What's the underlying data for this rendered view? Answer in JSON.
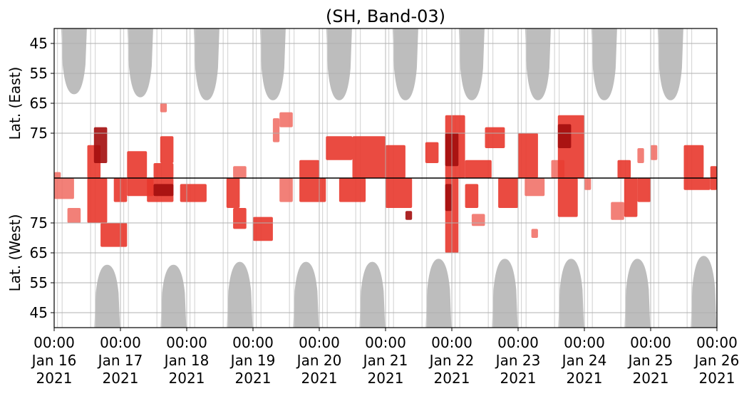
{
  "chart_data": {
    "type": "heatmap",
    "title": "(SH, Band-03)",
    "grid": true,
    "x_axis": {
      "range": [
        "2021-01-16 00:00",
        "2021-01-26 00:00"
      ],
      "ticks": [
        {
          "time": "00:00",
          "date": "Jan 16",
          "year": "2021"
        },
        {
          "time": "00:00",
          "date": "Jan 17",
          "year": "2021"
        },
        {
          "time": "00:00",
          "date": "Jan 18",
          "year": "2021"
        },
        {
          "time": "00:00",
          "date": "Jan 19",
          "year": "2021"
        },
        {
          "time": "00:00",
          "date": "Jan 20",
          "year": "2021"
        },
        {
          "time": "00:00",
          "date": "Jan 21",
          "year": "2021"
        },
        {
          "time": "00:00",
          "date": "Jan 22",
          "year": "2021"
        },
        {
          "time": "00:00",
          "date": "Jan 23",
          "year": "2021"
        },
        {
          "time": "00:00",
          "date": "Jan 24",
          "year": "2021"
        },
        {
          "time": "00:00",
          "date": "Jan 25",
          "year": "2021"
        },
        {
          "time": "00:00",
          "date": "Jan 26",
          "year": "2021"
        }
      ]
    },
    "y_axis_east": {
      "label": "Lat. (East)",
      "ticks": [
        "45",
        "55",
        "65",
        "75"
      ],
      "range": [
        40,
        90
      ]
    },
    "y_axis_west": {
      "label": "Lat. (West)",
      "ticks": [
        "75",
        "65",
        "55",
        "45"
      ],
      "range": [
        90,
        40
      ]
    },
    "colors": {
      "activity_light": "#f06a60",
      "activity_mid": "#e8372c",
      "activity_dark": "#a30d0d",
      "daylight": "#bdbdbd",
      "grid": "#b0b0b0",
      "divider": "#000000"
    },
    "daylight_east": [
      {
        "center_day": 0.3,
        "bottom_lat": 62
      },
      {
        "center_day": 1.3,
        "bottom_lat": 63
      },
      {
        "center_day": 2.3,
        "bottom_lat": 64
      },
      {
        "center_day": 3.3,
        "bottom_lat": 64
      },
      {
        "center_day": 4.3,
        "bottom_lat": 64
      },
      {
        "center_day": 5.3,
        "bottom_lat": 64
      },
      {
        "center_day": 6.3,
        "bottom_lat": 64
      },
      {
        "center_day": 7.3,
        "bottom_lat": 64
      },
      {
        "center_day": 8.3,
        "bottom_lat": 64
      },
      {
        "center_day": 9.3,
        "bottom_lat": 64
      }
    ],
    "daylight_west": [
      {
        "center_day": 0.8,
        "top_lat": 61
      },
      {
        "center_day": 1.8,
        "top_lat": 61
      },
      {
        "center_day": 2.8,
        "top_lat": 62
      },
      {
        "center_day": 3.8,
        "top_lat": 62
      },
      {
        "center_day": 4.8,
        "top_lat": 62
      },
      {
        "center_day": 5.8,
        "top_lat": 63
      },
      {
        "center_day": 6.8,
        "top_lat": 63
      },
      {
        "center_day": 7.8,
        "top_lat": 63
      },
      {
        "center_day": 8.8,
        "top_lat": 63
      },
      {
        "center_day": 9.8,
        "top_lat": 64
      }
    ],
    "activity_clusters": [
      {
        "hemisphere": "east",
        "day_start": 0.0,
        "day_end": 0.1,
        "lat_from": 88,
        "lat_to": 90,
        "intensity": 1
      },
      {
        "hemisphere": "west",
        "day_start": 0.0,
        "day_end": 0.3,
        "lat_from": 83,
        "lat_to": 90,
        "intensity": 1
      },
      {
        "hemisphere": "west",
        "day_start": 0.2,
        "day_end": 0.4,
        "lat_from": 75,
        "lat_to": 80,
        "intensity": 1
      },
      {
        "hemisphere": "east",
        "day_start": 0.5,
        "day_end": 0.7,
        "lat_from": 79,
        "lat_to": 90,
        "intensity": 2
      },
      {
        "hemisphere": "east",
        "day_start": 0.6,
        "day_end": 0.8,
        "lat_from": 73,
        "lat_to": 85,
        "intensity": 3
      },
      {
        "hemisphere": "west",
        "day_start": 0.5,
        "day_end": 0.8,
        "lat_from": 75,
        "lat_to": 90,
        "intensity": 2
      },
      {
        "hemisphere": "west",
        "day_start": 0.7,
        "day_end": 1.1,
        "lat_from": 67,
        "lat_to": 75,
        "intensity": 2
      },
      {
        "hemisphere": "west",
        "day_start": 0.9,
        "day_end": 1.1,
        "lat_from": 82,
        "lat_to": 90,
        "intensity": 2
      },
      {
        "hemisphere": "east",
        "day_start": 1.1,
        "day_end": 1.4,
        "lat_from": 81,
        "lat_to": 90,
        "intensity": 2
      },
      {
        "hemisphere": "west",
        "day_start": 1.1,
        "day_end": 1.5,
        "lat_from": 84,
        "lat_to": 90,
        "intensity": 2
      },
      {
        "hemisphere": "east",
        "day_start": 1.5,
        "day_end": 1.8,
        "lat_from": 85,
        "lat_to": 90,
        "intensity": 2
      },
      {
        "hemisphere": "west",
        "day_start": 1.4,
        "day_end": 1.8,
        "lat_from": 82,
        "lat_to": 90,
        "intensity": 2
      },
      {
        "hemisphere": "west",
        "day_start": 1.5,
        "day_end": 1.8,
        "lat_from": 84,
        "lat_to": 88,
        "intensity": 3
      },
      {
        "hemisphere": "east",
        "day_start": 1.6,
        "day_end": 1.7,
        "lat_from": 65,
        "lat_to": 68,
        "intensity": 1
      },
      {
        "hemisphere": "east",
        "day_start": 1.6,
        "day_end": 1.8,
        "lat_from": 76,
        "lat_to": 85,
        "intensity": 2
      },
      {
        "hemisphere": "west",
        "day_start": 1.9,
        "day_end": 2.3,
        "lat_from": 82,
        "lat_to": 88,
        "intensity": 2
      },
      {
        "hemisphere": "east",
        "day_start": 2.7,
        "day_end": 2.9,
        "lat_from": 86,
        "lat_to": 90,
        "intensity": 1
      },
      {
        "hemisphere": "west",
        "day_start": 2.6,
        "day_end": 2.8,
        "lat_from": 80,
        "lat_to": 90,
        "intensity": 2
      },
      {
        "hemisphere": "west",
        "day_start": 2.7,
        "day_end": 2.9,
        "lat_from": 73,
        "lat_to": 80,
        "intensity": 2
      },
      {
        "hemisphere": "west",
        "day_start": 3.0,
        "day_end": 3.3,
        "lat_from": 69,
        "lat_to": 77,
        "intensity": 2
      },
      {
        "hemisphere": "east",
        "day_start": 3.3,
        "day_end": 3.4,
        "lat_from": 70,
        "lat_to": 78,
        "intensity": 1
      },
      {
        "hemisphere": "east",
        "day_start": 3.4,
        "day_end": 3.6,
        "lat_from": 68,
        "lat_to": 73,
        "intensity": 1
      },
      {
        "hemisphere": "west",
        "day_start": 3.4,
        "day_end": 3.6,
        "lat_from": 82,
        "lat_to": 90,
        "intensity": 1
      },
      {
        "hemisphere": "west",
        "day_start": 3.7,
        "day_end": 4.1,
        "lat_from": 82,
        "lat_to": 90,
        "intensity": 2
      },
      {
        "hemisphere": "east",
        "day_start": 3.7,
        "day_end": 4.0,
        "lat_from": 84,
        "lat_to": 90,
        "intensity": 2
      },
      {
        "hemisphere": "east",
        "day_start": 4.1,
        "day_end": 4.5,
        "lat_from": 76,
        "lat_to": 84,
        "intensity": 2
      },
      {
        "hemisphere": "west",
        "day_start": 4.3,
        "day_end": 4.7,
        "lat_from": 82,
        "lat_to": 90,
        "intensity": 2
      },
      {
        "hemisphere": "east",
        "day_start": 4.5,
        "day_end": 5.0,
        "lat_from": 76,
        "lat_to": 90,
        "intensity": 2
      },
      {
        "hemisphere": "east",
        "day_start": 5.0,
        "day_end": 5.3,
        "lat_from": 79,
        "lat_to": 90,
        "intensity": 2
      },
      {
        "hemisphere": "west",
        "day_start": 5.0,
        "day_end": 5.4,
        "lat_from": 80,
        "lat_to": 90,
        "intensity": 2
      },
      {
        "hemisphere": "west",
        "day_start": 5.3,
        "day_end": 5.4,
        "lat_from": 76,
        "lat_to": 79,
        "intensity": 3
      },
      {
        "hemisphere": "east",
        "day_start": 5.6,
        "day_end": 5.8,
        "lat_from": 78,
        "lat_to": 85,
        "intensity": 2
      },
      {
        "hemisphere": "east",
        "day_start": 5.9,
        "day_end": 6.2,
        "lat_from": 69,
        "lat_to": 90,
        "intensity": 2
      },
      {
        "hemisphere": "east",
        "day_start": 5.9,
        "day_end": 6.1,
        "lat_from": 75,
        "lat_to": 86,
        "intensity": 3
      },
      {
        "hemisphere": "west",
        "day_start": 5.9,
        "day_end": 6.1,
        "lat_from": 65,
        "lat_to": 90,
        "intensity": 2
      },
      {
        "hemisphere": "west",
        "day_start": 5.9,
        "day_end": 6.0,
        "lat_from": 79,
        "lat_to": 88,
        "intensity": 3
      },
      {
        "hemisphere": "east",
        "day_start": 6.2,
        "day_end": 6.6,
        "lat_from": 84,
        "lat_to": 90,
        "intensity": 2
      },
      {
        "hemisphere": "west",
        "day_start": 6.2,
        "day_end": 6.4,
        "lat_from": 80,
        "lat_to": 88,
        "intensity": 2
      },
      {
        "hemisphere": "west",
        "day_start": 6.3,
        "day_end": 6.5,
        "lat_from": 74,
        "lat_to": 78,
        "intensity": 1
      },
      {
        "hemisphere": "east",
        "day_start": 6.5,
        "day_end": 6.8,
        "lat_from": 73,
        "lat_to": 80,
        "intensity": 2
      },
      {
        "hemisphere": "west",
        "day_start": 6.7,
        "day_end": 7.0,
        "lat_from": 80,
        "lat_to": 90,
        "intensity": 2
      },
      {
        "hemisphere": "east",
        "day_start": 7.0,
        "day_end": 7.3,
        "lat_from": 75,
        "lat_to": 90,
        "intensity": 2
      },
      {
        "hemisphere": "west",
        "day_start": 7.1,
        "day_end": 7.4,
        "lat_from": 84,
        "lat_to": 90,
        "intensity": 1
      },
      {
        "hemisphere": "west",
        "day_start": 7.2,
        "day_end": 7.3,
        "lat_from": 70,
        "lat_to": 73,
        "intensity": 1
      },
      {
        "hemisphere": "east",
        "day_start": 7.5,
        "day_end": 7.7,
        "lat_from": 84,
        "lat_to": 90,
        "intensity": 1
      },
      {
        "hemisphere": "east",
        "day_start": 7.6,
        "day_end": 8.0,
        "lat_from": 69,
        "lat_to": 90,
        "intensity": 2
      },
      {
        "hemisphere": "east",
        "day_start": 7.6,
        "day_end": 7.8,
        "lat_from": 72,
        "lat_to": 80,
        "intensity": 3
      },
      {
        "hemisphere": "west",
        "day_start": 7.6,
        "day_end": 7.9,
        "lat_from": 77,
        "lat_to": 90,
        "intensity": 2
      },
      {
        "hemisphere": "west",
        "day_start": 8.0,
        "day_end": 8.1,
        "lat_from": 86,
        "lat_to": 90,
        "intensity": 1
      },
      {
        "hemisphere": "east",
        "day_start": 8.5,
        "day_end": 8.7,
        "lat_from": 84,
        "lat_to": 90,
        "intensity": 2
      },
      {
        "hemisphere": "west",
        "day_start": 8.4,
        "day_end": 8.6,
        "lat_from": 76,
        "lat_to": 82,
        "intensity": 1
      },
      {
        "hemisphere": "west",
        "day_start": 8.6,
        "day_end": 8.8,
        "lat_from": 77,
        "lat_to": 90,
        "intensity": 2
      },
      {
        "hemisphere": "east",
        "day_start": 8.8,
        "day_end": 8.9,
        "lat_from": 80,
        "lat_to": 85,
        "intensity": 1
      },
      {
        "hemisphere": "west",
        "day_start": 8.8,
        "day_end": 9.0,
        "lat_from": 82,
        "lat_to": 90,
        "intensity": 2
      },
      {
        "hemisphere": "east",
        "day_start": 9.0,
        "day_end": 9.1,
        "lat_from": 79,
        "lat_to": 84,
        "intensity": 1
      },
      {
        "hemisphere": "east",
        "day_start": 9.5,
        "day_end": 9.8,
        "lat_from": 79,
        "lat_to": 90,
        "intensity": 2
      },
      {
        "hemisphere": "west",
        "day_start": 9.5,
        "day_end": 9.9,
        "lat_from": 86,
        "lat_to": 90,
        "intensity": 2
      },
      {
        "hemisphere": "east",
        "day_start": 9.9,
        "day_end": 10.0,
        "lat_from": 86,
        "lat_to": 90,
        "intensity": 2
      },
      {
        "hemisphere": "west",
        "day_start": 9.9,
        "day_end": 10.0,
        "lat_from": 86,
        "lat_to": 90,
        "intensity": 2
      }
    ]
  }
}
